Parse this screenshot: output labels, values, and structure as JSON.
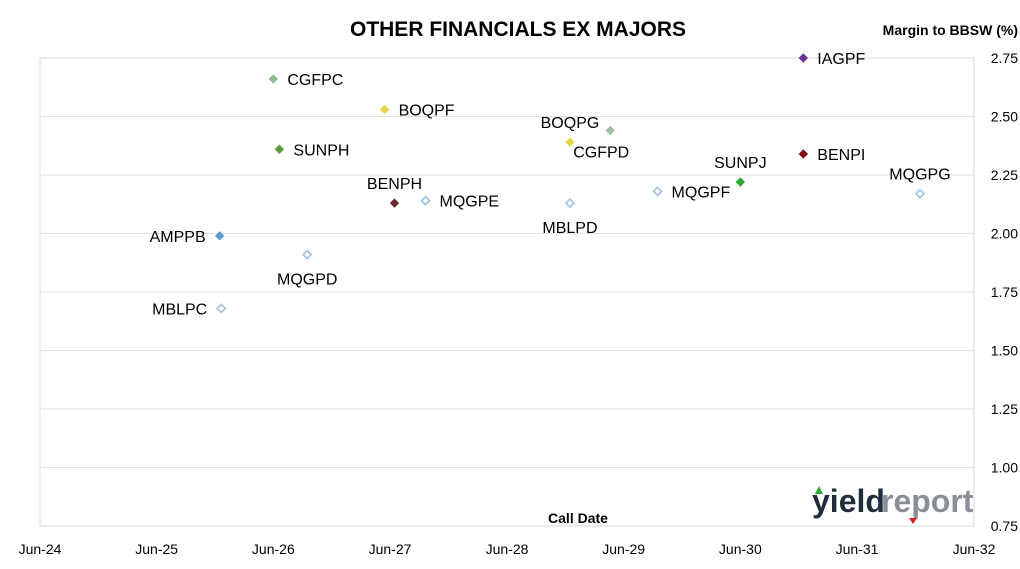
{
  "chart_data": {
    "type": "scatter",
    "title": "OTHER FINANCIALS EX MAJORS",
    "xlabel": "Call Date",
    "ylabel": "Margin to BBSW (%)",
    "x_axis": {
      "type": "date",
      "min": "2024-06-01",
      "max": "2032-06-01",
      "ticks": [
        {
          "date": "2024-06-01",
          "label": "Jun-24"
        },
        {
          "date": "2025-06-01",
          "label": "Jun-25"
        },
        {
          "date": "2026-06-01",
          "label": "Jun-26"
        },
        {
          "date": "2027-06-01",
          "label": "Jun-27"
        },
        {
          "date": "2028-06-01",
          "label": "Jun-28"
        },
        {
          "date": "2029-06-01",
          "label": "Jun-29"
        },
        {
          "date": "2030-06-01",
          "label": "Jun-30"
        },
        {
          "date": "2031-06-01",
          "label": "Jun-31"
        },
        {
          "date": "2032-06-01",
          "label": "Jun-32"
        }
      ]
    },
    "y_axis": {
      "position": "right",
      "min": 0.75,
      "max": 2.75,
      "ticks": [
        "0.75",
        "1.00",
        "1.25",
        "1.50",
        "1.75",
        "2.00",
        "2.25",
        "2.50",
        "2.75"
      ]
    },
    "grid": "horizontal",
    "points": [
      {
        "label": "IAGPF",
        "x": "2030-12-15",
        "y": 2.75,
        "color": "#7030a0",
        "filled": true,
        "label_pos": "right"
      },
      {
        "label": "CGFPC",
        "x": "2026-06-01",
        "y": 2.66,
        "color": "#8fbc8f",
        "filled": true,
        "label_pos": "right"
      },
      {
        "label": "BOQPF",
        "x": "2027-05-15",
        "y": 2.53,
        "color": "#e6d84a",
        "filled": true,
        "label_pos": "right"
      },
      {
        "label": "BOQPG",
        "x": "2028-12-15",
        "y": 2.39,
        "color": "#e6d84a",
        "filled": true,
        "label_pos": "top"
      },
      {
        "label": "CGFPD",
        "x": "2029-04-20",
        "y": 2.44,
        "color": "#9fbf9f",
        "filled": true,
        "label_pos": "bottom-left"
      },
      {
        "label": "SUNPH",
        "x": "2026-06-20",
        "y": 2.36,
        "color": "#5a9e3a",
        "filled": true,
        "label_pos": "right"
      },
      {
        "label": "BENPI",
        "x": "2030-12-15",
        "y": 2.34,
        "color": "#7a1010",
        "filled": true,
        "label_pos": "right"
      },
      {
        "label": "SUNPJ",
        "x": "2030-06-01",
        "y": 2.22,
        "color": "#2aa832",
        "filled": true,
        "label_pos": "top"
      },
      {
        "label": "MQGPG",
        "x": "2031-12-15",
        "y": 2.17,
        "color": "#a9c4e4",
        "filled": false,
        "label_pos": "top"
      },
      {
        "label": "MQGPF",
        "x": "2029-09-15",
        "y": 2.18,
        "color": "#a9c4e4",
        "filled": false,
        "label_pos": "right"
      },
      {
        "label": "BENPH",
        "x": "2027-06-15",
        "y": 2.13,
        "color": "#6b2a2a",
        "filled": true,
        "label_pos": "top"
      },
      {
        "label": "MQGPE",
        "x": "2027-09-20",
        "y": 2.14,
        "color": "#a9c4e4",
        "filled": false,
        "label_pos": "right"
      },
      {
        "label": "MBLPD",
        "x": "2028-12-15",
        "y": 2.13,
        "color": "#a9c4e4",
        "filled": false,
        "label_pos": "bottom"
      },
      {
        "label": "AMPPB",
        "x": "2025-12-15",
        "y": 1.99,
        "color": "#5b9bd5",
        "filled": true,
        "label_pos": "left"
      },
      {
        "label": "MQGPD",
        "x": "2026-09-15",
        "y": 1.91,
        "color": "#a9c4e4",
        "filled": false,
        "label_pos": "bottom"
      },
      {
        "label": "MBLPC",
        "x": "2025-12-20",
        "y": 1.68,
        "color": "#a9c4e4",
        "filled": false,
        "label_pos": "left"
      }
    ]
  },
  "logo": {
    "part1": "yield",
    "part2": "report"
  }
}
